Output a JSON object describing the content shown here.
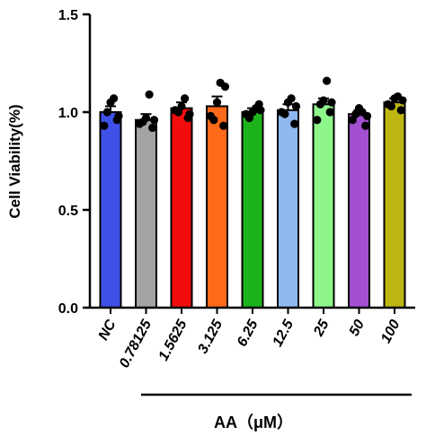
{
  "chart_data": {
    "type": "bar",
    "title": "",
    "ylabel": "Cell Viability(%)",
    "xlabel": "",
    "group_label": "AA（μM）",
    "ylim": [
      0.0,
      1.5
    ],
    "yticks": [
      "0.0",
      "0.5",
      "1.0",
      "1.5"
    ],
    "categories": [
      "NC",
      "0.78125",
      "1.5625",
      "3.125",
      "6.25",
      "12.5",
      "25",
      "50",
      "100"
    ],
    "values": [
      1.0,
      0.96,
      1.02,
      1.03,
      1.0,
      1.01,
      1.04,
      0.99,
      1.05
    ],
    "errors": [
      0.03,
      0.03,
      0.03,
      0.05,
      0.02,
      0.03,
      0.03,
      0.02,
      0.02
    ],
    "colors": [
      "#3f51e8",
      "#a3a3a3",
      "#f20d0d",
      "#ff6a1a",
      "#1db31d",
      "#8fb8f0",
      "#8ef58a",
      "#a24fd1",
      "#bdb512"
    ],
    "points": [
      [
        0.96,
        1.0,
        1.05,
        1.07,
        0.93,
        0.98
      ],
      [
        0.92,
        0.95,
        0.97,
        1.09,
        0.94,
        0.96
      ],
      [
        0.97,
        1.0,
        1.03,
        1.07,
        1.01,
        0.99
      ],
      [
        0.93,
        0.96,
        1.05,
        1.15,
        0.98,
        1.13
      ],
      [
        1.04,
        0.97,
        1.0,
        1.02,
        0.99,
        1.01
      ],
      [
        0.94,
        0.99,
        1.05,
        1.07,
        1.0,
        1.03
      ],
      [
        1.0,
        1.04,
        1.06,
        1.16,
        0.96,
        1.05
      ],
      [
        0.93,
        0.99,
        1.02,
        1.0,
        0.96,
        0.98
      ],
      [
        1.01,
        1.03,
        1.07,
        1.08,
        1.04,
        1.06
      ]
    ],
    "grid": false,
    "legend": "none"
  }
}
